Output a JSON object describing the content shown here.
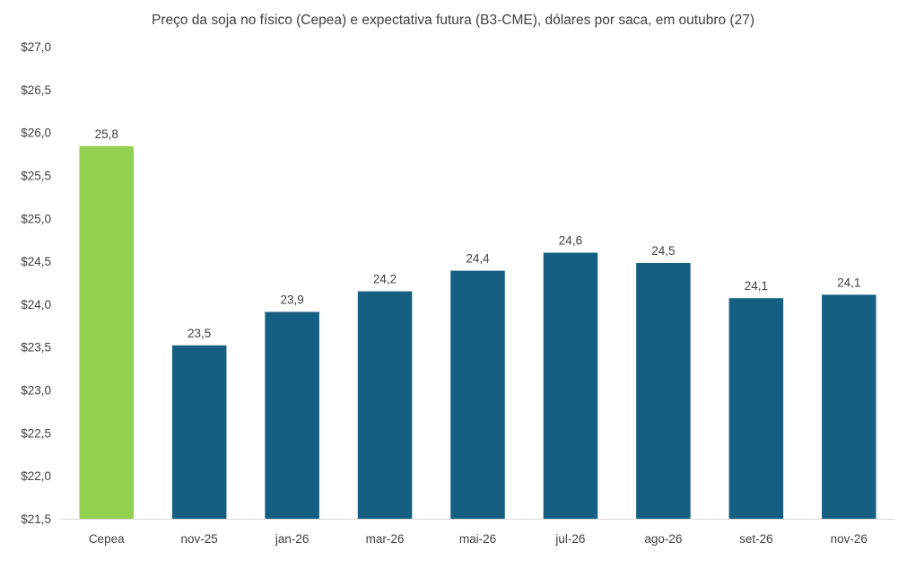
{
  "chart_data": {
    "type": "bar",
    "title": "Preço da soja no físico (Cepea) e expectativa futura (B3-CME), dólares por saca, em outubro (27)",
    "xlabel": "",
    "ylabel": "",
    "ylim": [
      21.5,
      27.0
    ],
    "ytick_step": 0.5,
    "ytick_labels": [
      "$21,5",
      "$22,0",
      "$22,5",
      "$23,0",
      "$23,5",
      "$24,0",
      "$24,5",
      "$25,0",
      "$25,5",
      "$26,0",
      "$26,5",
      "$27,0"
    ],
    "categories": [
      "Cepea",
      "nov-25",
      "jan-26",
      "mar-26",
      "mai-26",
      "jul-26",
      "ago-26",
      "set-26",
      "nov-26"
    ],
    "values": [
      25.84,
      23.52,
      23.91,
      24.15,
      24.39,
      24.6,
      24.48,
      24.07,
      24.11
    ],
    "data_labels": [
      "25,8",
      "23,5",
      "23,9",
      "24,2",
      "24,4",
      "24,6",
      "24,5",
      "24,1",
      "24,1"
    ],
    "bar_colors": [
      "#92d050",
      "#156082",
      "#156082",
      "#156082",
      "#156082",
      "#156082",
      "#156082",
      "#156082",
      "#156082"
    ],
    "grid": false,
    "legend": "none"
  }
}
